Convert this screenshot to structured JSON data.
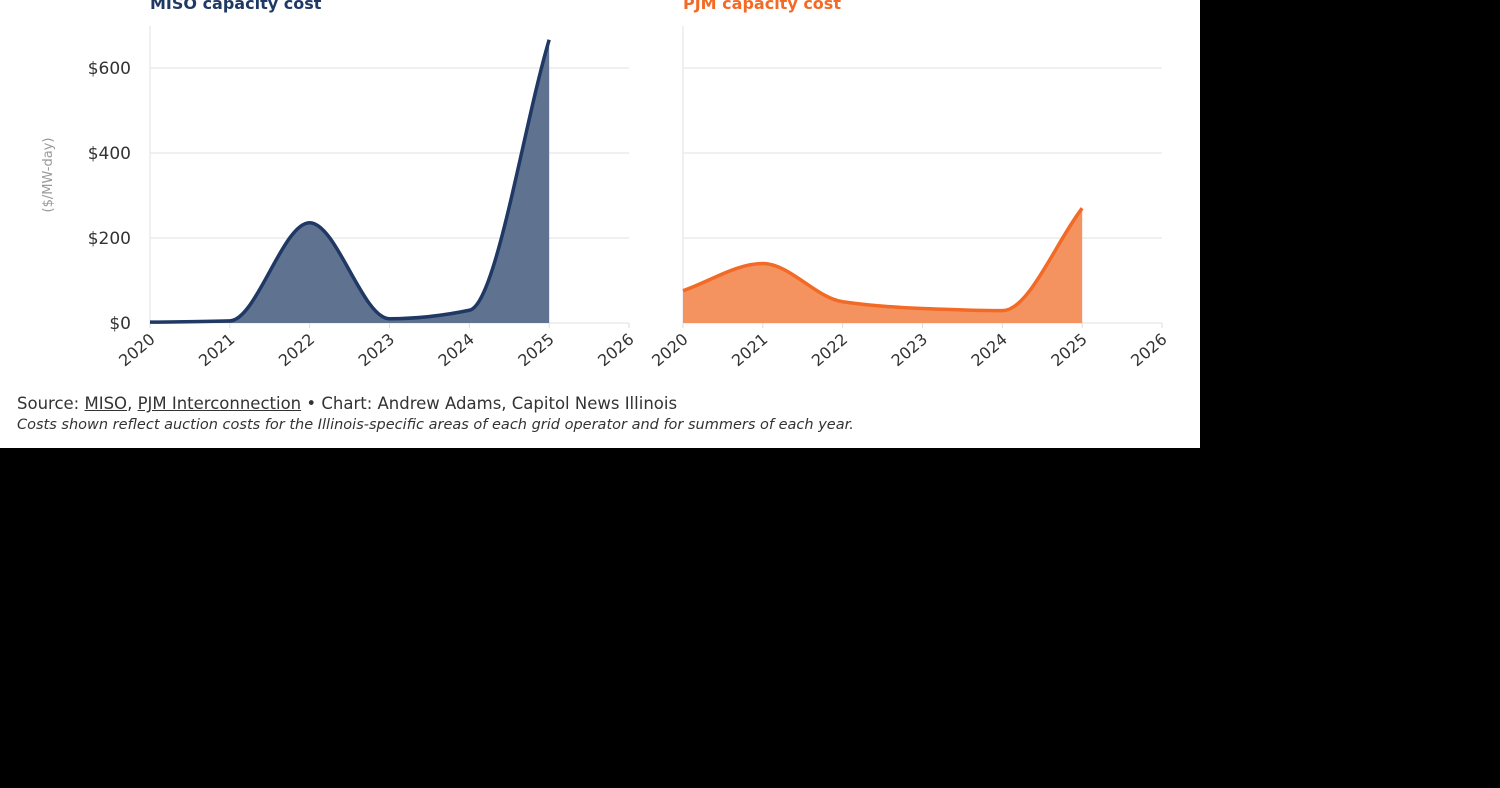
{
  "chart_data": [
    {
      "type": "area",
      "title": "MISO capacity cost",
      "ylabel": "($/MW-day)",
      "x": [
        2020,
        2021,
        2022,
        2023,
        2024,
        2025
      ],
      "values": [
        2,
        5,
        236,
        10,
        30,
        666.5
      ],
      "xlim": [
        2020,
        2026
      ],
      "ylim": [
        0,
        700
      ],
      "xticks": [
        "2020",
        "2021",
        "2022",
        "2023",
        "2024",
        "2025",
        "2026"
      ],
      "yticks": [
        {
          "v": 0,
          "label": "$0"
        },
        {
          "v": 200,
          "label": "$200"
        },
        {
          "v": 400,
          "label": "$400"
        },
        {
          "v": 600,
          "label": "$600"
        }
      ],
      "grid": true,
      "color": "#1f3864",
      "fill": "#5f7391"
    },
    {
      "type": "area",
      "title": "PJM capacity cost",
      "x": [
        2020,
        2021,
        2022,
        2023,
        2024,
        2025
      ],
      "values": [
        76,
        140,
        50,
        34,
        29,
        270
      ],
      "xlim": [
        2020,
        2026
      ],
      "ylim": [
        0,
        700
      ],
      "xticks": [
        "2020",
        "2021",
        "2022",
        "2023",
        "2024",
        "2025",
        "2026"
      ],
      "grid": true,
      "color": "#f26a25",
      "fill": "#f4935f"
    }
  ],
  "footer": {
    "source_prefix": "Source: ",
    "source_link1": "MISO",
    "source_sep": ", ",
    "source_link2": "PJM Interconnection",
    "credit": " • Chart: Andrew Adams, Capitol News Illinois",
    "note": "Costs shown reflect auction costs for the Illinois-specific areas of each grid operator and for summers of each year."
  }
}
